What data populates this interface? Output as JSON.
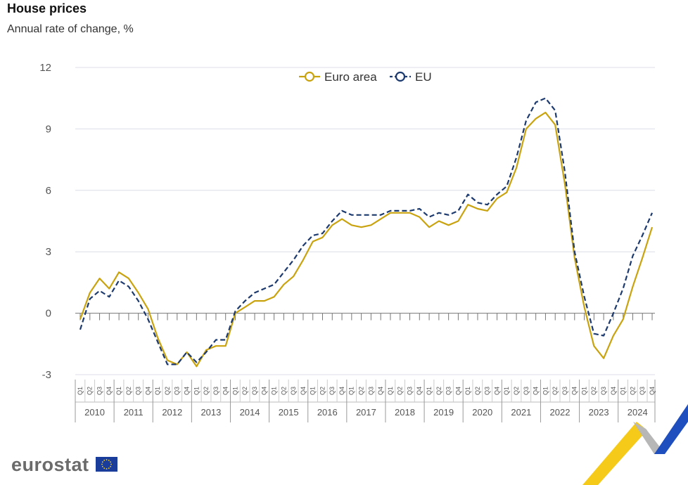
{
  "header": {
    "title": "House prices",
    "subtitle": "Annual rate of change, %"
  },
  "brand": {
    "logo_text": "eurostat",
    "flag_icon": "eu-flag-icon"
  },
  "colors": {
    "euro_area": "#c9a30f",
    "eu": "#1d3a6e",
    "grid": "#dcdde8",
    "axis": "#777777",
    "text": "#555555"
  },
  "chart_data": {
    "type": "line",
    "ylim": [
      -3,
      12
    ],
    "yticks": [
      -3,
      0,
      3,
      6,
      9,
      12
    ],
    "grid": true,
    "legend": "top-center",
    "quarter_labels": [
      "Q1",
      "Q2",
      "Q3",
      "Q4"
    ],
    "years": [
      "2010",
      "2011",
      "2012",
      "2013",
      "2014",
      "2015",
      "2016",
      "2017",
      "2018",
      "2019",
      "2020",
      "2021",
      "2022",
      "2023",
      "2024"
    ],
    "series": [
      {
        "name": "Euro area",
        "style": "solid",
        "values": [
          -0.3,
          1.0,
          1.7,
          1.2,
          2.0,
          1.7,
          1.0,
          0.2,
          -1.2,
          -2.3,
          -2.5,
          -1.9,
          -2.6,
          -1.8,
          -1.6,
          -1.6,
          0.0,
          0.3,
          0.6,
          0.6,
          0.8,
          1.4,
          1.8,
          2.6,
          3.5,
          3.7,
          4.3,
          4.6,
          4.3,
          4.2,
          4.3,
          4.6,
          4.9,
          4.9,
          4.9,
          4.7,
          4.2,
          4.5,
          4.3,
          4.5,
          5.3,
          5.1,
          5.0,
          5.6,
          5.9,
          7.1,
          9.0,
          9.5,
          9.8,
          9.2,
          6.3,
          2.7,
          0.3,
          -1.6,
          -2.2,
          -1.1,
          -0.3,
          1.3,
          2.7,
          4.2
        ]
      },
      {
        "name": "EU",
        "style": "dashed",
        "values": [
          -0.8,
          0.7,
          1.1,
          0.8,
          1.6,
          1.3,
          0.6,
          -0.3,
          -1.4,
          -2.5,
          -2.5,
          -1.9,
          -2.4,
          -1.9,
          -1.3,
          -1.3,
          0.1,
          0.6,
          1.0,
          1.2,
          1.4,
          2.0,
          2.6,
          3.3,
          3.8,
          3.9,
          4.5,
          5.0,
          4.8,
          4.8,
          4.8,
          4.8,
          5.0,
          5.0,
          5.0,
          5.1,
          4.7,
          4.9,
          4.8,
          5.0,
          5.8,
          5.4,
          5.3,
          5.8,
          6.2,
          7.6,
          9.4,
          10.3,
          10.5,
          9.9,
          6.9,
          3.0,
          0.8,
          -1.0,
          -1.1,
          0.0,
          1.2,
          2.8,
          3.8,
          4.9
        ]
      }
    ]
  }
}
